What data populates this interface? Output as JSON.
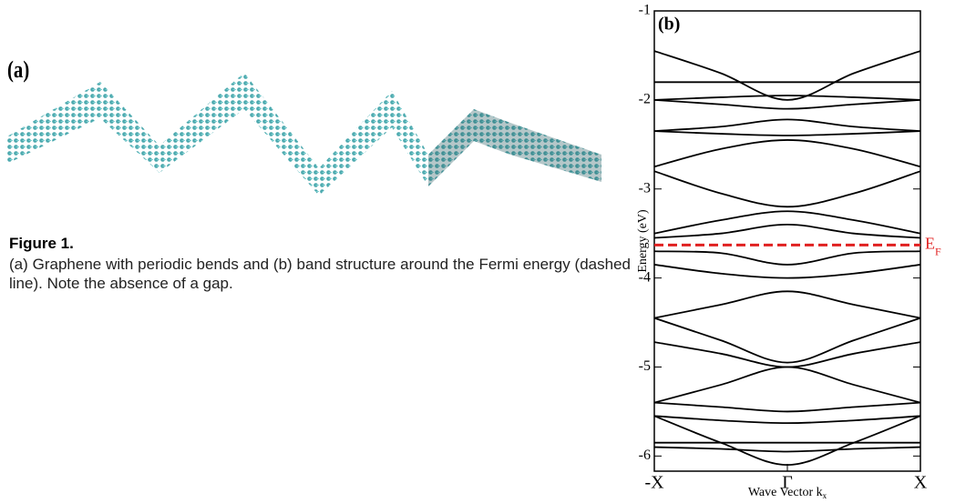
{
  "figure": {
    "panel_a_label": "(a)",
    "caption_title": "Figure 1.",
    "caption_text": "(a) Graphene with periodic bends and (b) band structure around the Fermi energy (dashed line). Note the absence of a gap."
  },
  "chart_data": {
    "type": "line",
    "panel_label": "(b)",
    "ylabel": "Energy (eV)",
    "xlabel": "Wave Vector k",
    "xlabel_sub": "x",
    "x": [
      -1,
      -0.5,
      0,
      0.5,
      1
    ],
    "xlim": [
      -1,
      1
    ],
    "xticks": [
      {
        "value": -1,
        "label": "-X"
      },
      {
        "value": 0,
        "label": "Γ"
      },
      {
        "value": 1,
        "label": "X"
      }
    ],
    "ylim": [
      -6.17,
      -1
    ],
    "yticks": [
      -1,
      -2,
      -3,
      -4,
      -5,
      -6
    ],
    "fermi_level": {
      "value": -3.63,
      "label": "E",
      "label_sub": "F",
      "color": "#e02020"
    },
    "series": [
      {
        "color": "#000000",
        "values": [
          -1.45,
          -1.7,
          -2.0,
          -1.7,
          -1.45
        ]
      },
      {
        "color": "#000000",
        "values": [
          -1.8,
          -1.8,
          -1.8,
          -1.8,
          -1.8
        ]
      },
      {
        "color": "#000000",
        "values": [
          -2.0,
          -1.97,
          -1.95,
          -1.97,
          -2.0
        ]
      },
      {
        "color": "#000000",
        "values": [
          -2.0,
          -2.05,
          -2.1,
          -2.05,
          -2.0
        ]
      },
      {
        "color": "#000000",
        "values": [
          -2.35,
          -2.3,
          -2.22,
          -2.3,
          -2.35
        ]
      },
      {
        "color": "#000000",
        "values": [
          -2.35,
          -2.38,
          -2.4,
          -2.38,
          -2.35
        ]
      },
      {
        "color": "#000000",
        "values": [
          -2.75,
          -2.55,
          -2.45,
          -2.55,
          -2.75
        ]
      },
      {
        "color": "#000000",
        "values": [
          -2.8,
          -3.05,
          -3.2,
          -3.05,
          -2.8
        ]
      },
      {
        "color": "#000000",
        "values": [
          -3.5,
          -3.35,
          -3.25,
          -3.35,
          -3.5
        ]
      },
      {
        "color": "#000000",
        "values": [
          -3.55,
          -3.5,
          -3.4,
          -3.5,
          -3.55
        ]
      },
      {
        "color": "#000000",
        "values": [
          -3.7,
          -3.72,
          -3.85,
          -3.72,
          -3.7
        ]
      },
      {
        "color": "#000000",
        "values": [
          -3.85,
          -3.95,
          -4.0,
          -3.95,
          -3.85
        ]
      },
      {
        "color": "#000000",
        "values": [
          -4.45,
          -4.3,
          -4.15,
          -4.3,
          -4.45
        ]
      },
      {
        "color": "#000000",
        "values": [
          -4.45,
          -4.7,
          -4.95,
          -4.7,
          -4.45
        ]
      },
      {
        "color": "#000000",
        "values": [
          -4.72,
          -4.85,
          -5.0,
          -4.85,
          -4.72
        ]
      },
      {
        "color": "#000000",
        "values": [
          -5.4,
          -5.2,
          -5.0,
          -5.2,
          -5.4
        ]
      },
      {
        "color": "#000000",
        "values": [
          -5.4,
          -5.45,
          -5.5,
          -5.45,
          -5.4
        ]
      },
      {
        "color": "#000000",
        "values": [
          -5.55,
          -5.6,
          -5.63,
          -5.6,
          -5.55
        ]
      },
      {
        "color": "#000000",
        "values": [
          -5.85,
          -5.85,
          -5.85,
          -5.85,
          -5.85
        ]
      },
      {
        "color": "#000000",
        "values": [
          -5.9,
          -5.92,
          -5.95,
          -5.92,
          -5.9
        ]
      },
      {
        "color": "#000000",
        "values": [
          -5.55,
          -5.85,
          -6.1,
          -5.85,
          -5.55
        ]
      }
    ]
  }
}
